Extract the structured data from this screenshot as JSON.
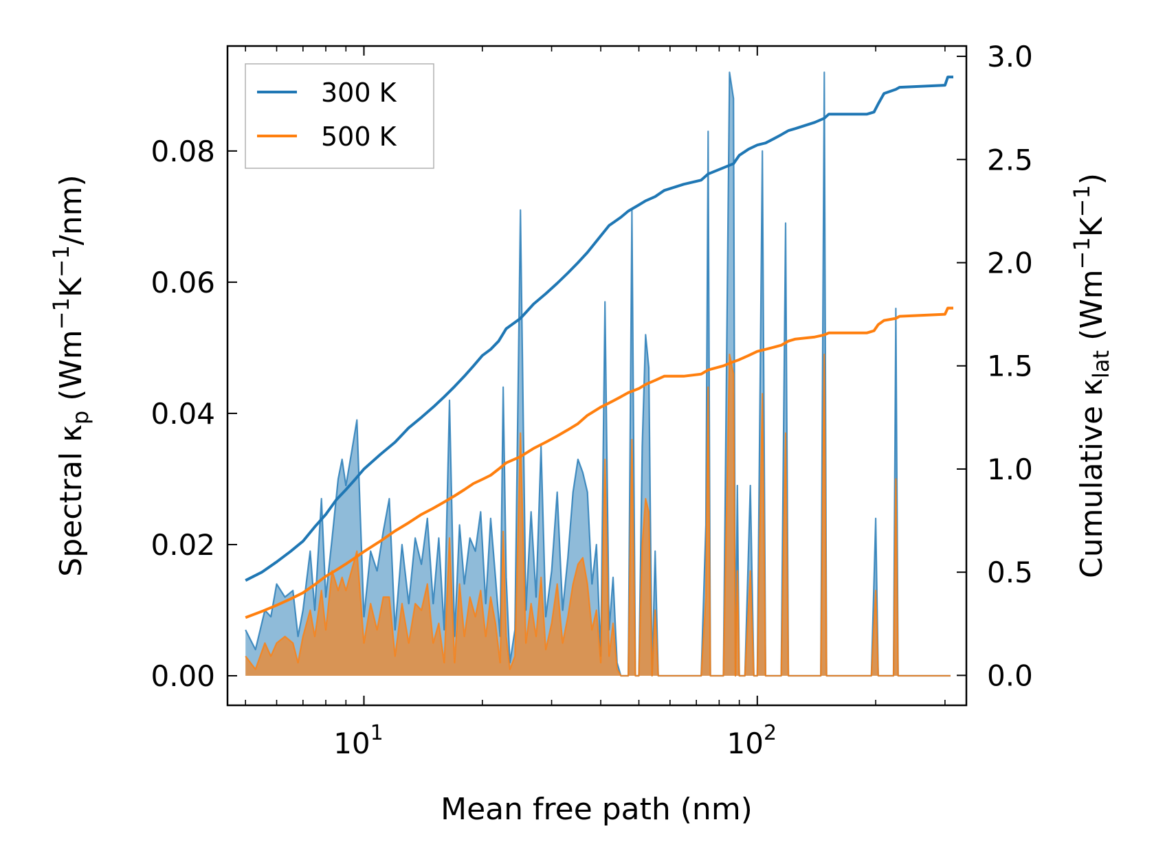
{
  "chart_data": {
    "type": "line",
    "xlabel": "Mean free path (nm)",
    "xscale": "log",
    "xlim": [
      4.5,
      340
    ],
    "xticks": [
      {
        "value": 10,
        "base": "10",
        "exp": "1"
      },
      {
        "value": 100,
        "base": "10",
        "exp": "2"
      }
    ],
    "left_axis": {
      "label_prefix": "Spectral κ",
      "label_sub": "p",
      "label_unit_prefix": "(Wm",
      "label_unit_exp1": "−1",
      "label_unit_mid": "K",
      "label_unit_exp2": "−1",
      "label_unit_suffix": "/nm)",
      "ylim": [
        -0.0045,
        0.096
      ],
      "ticks": [
        0.0,
        0.02,
        0.04,
        0.06,
        0.08
      ],
      "tick_labels": [
        "0.00",
        "0.02",
        "0.04",
        "0.06",
        "0.08"
      ]
    },
    "right_axis": {
      "label_prefix": "Cumulative κ",
      "label_sub": "lat",
      "label_unit_prefix": "(Wm",
      "label_unit_exp1": "−1",
      "label_unit_mid": "K",
      "label_unit_exp2": "−1",
      "label_unit_suffix": ")",
      "ylim": [
        -0.145,
        3.05
      ],
      "ticks": [
        0.0,
        0.5,
        1.0,
        1.5,
        2.0,
        2.5,
        3.0
      ],
      "tick_labels": [
        "0.0",
        "0.5",
        "1.0",
        "1.5",
        "2.0",
        "2.5",
        "3.0"
      ]
    },
    "legend": {
      "position": "top-left",
      "entries": [
        {
          "label": "300 K",
          "color": "#1f77b4"
        },
        {
          "label": "500 K",
          "color": "#ff7f0e"
        }
      ]
    },
    "spectral_series": [
      {
        "name": "300 K",
        "color": "#1f77b4",
        "fill_color": "#1f77b4",
        "x": [
          5.0,
          5.3,
          5.6,
          5.8,
          6.0,
          6.3,
          6.6,
          6.8,
          7.0,
          7.3,
          7.5,
          7.8,
          8.0,
          8.3,
          8.6,
          8.8,
          9.0,
          9.3,
          9.6,
          10.0,
          10.4,
          10.8,
          11.2,
          11.6,
          12.0,
          12.5,
          13.0,
          13.5,
          14.0,
          14.5,
          15.0,
          15.5,
          16.0,
          16.5,
          17.0,
          17.5,
          18.0,
          18.6,
          19.2,
          19.8,
          20.4,
          21.0,
          21.6,
          22.2,
          22.6,
          23.0,
          23.5,
          24.2,
          25.0,
          25.8,
          26.6,
          27.4,
          28.2,
          29.0,
          30.0,
          31.0,
          32.0,
          33.0,
          34.0,
          35.0,
          36.0,
          37.0,
          38.0,
          39.0,
          40.0,
          41.0,
          42.0,
          43.0,
          44.0,
          45.0,
          46.0,
          47.0,
          48.0,
          49.0,
          50.0,
          51.0,
          52.0,
          53.0,
          54.0,
          55.0,
          56.0,
          57.0,
          58.0,
          59.0,
          60.0,
          62.0,
          68.0,
          72.0,
          74.0,
          75.0,
          76.0,
          78.0,
          82.0,
          85.0,
          87.0,
          88.0,
          89.0,
          90.0,
          93.0,
          96.0,
          98.0,
          100.0,
          103.0,
          105.0,
          107.0,
          110.0,
          115.0,
          118.0,
          120.0,
          123.0,
          145.0,
          148.0,
          150.0,
          153.0,
          195.0,
          200.0,
          203.0,
          206.0,
          222.0,
          225.0,
          228.0,
          232.0,
          295.0,
          300.0,
          302.0,
          305.0,
          310.0
        ],
        "values": [
          0.007,
          0.004,
          0.01,
          0.009,
          0.014,
          0.012,
          0.013,
          0.006,
          0.01,
          0.019,
          0.01,
          0.027,
          0.012,
          0.021,
          0.03,
          0.033,
          0.029,
          0.034,
          0.039,
          0.009,
          0.019,
          0.016,
          0.022,
          0.027,
          0.007,
          0.02,
          0.011,
          0.021,
          0.017,
          0.024,
          0.011,
          0.021,
          0.007,
          0.042,
          0.006,
          0.023,
          0.014,
          0.021,
          0.019,
          0.025,
          0.011,
          0.024,
          0.015,
          0.006,
          0.044,
          0.015,
          0.002,
          0.007,
          0.071,
          0.01,
          0.025,
          0.012,
          0.035,
          0.009,
          0.016,
          0.028,
          0.01,
          0.018,
          0.028,
          0.033,
          0.031,
          0.028,
          0.014,
          0.02,
          0.003,
          0.057,
          0.007,
          0.015,
          0.002,
          0.0,
          0.0,
          0.0,
          0.071,
          0.0,
          0.0,
          0.035,
          0.052,
          0.047,
          0.0,
          0.019,
          0.0,
          0.0,
          0.0,
          0.0,
          0.0,
          0.0,
          0.0,
          0.0,
          0.023,
          0.083,
          0.0,
          0.0,
          0.0,
          0.092,
          0.088,
          0.0,
          0.029,
          0.0,
          0.0,
          0.029,
          0.0,
          0.0,
          0.08,
          0.0,
          0.0,
          0.0,
          0.0,
          0.069,
          0.0,
          0.0,
          0.0,
          0.092,
          0.0,
          0.0,
          0.0,
          0.024,
          0.0,
          0.0,
          0.0,
          0.056,
          0.0,
          0.0,
          0.0,
          0.0,
          0.0,
          0.0,
          0.0
        ]
      },
      {
        "name": "500 K",
        "color": "#ff7f0e",
        "fill_color": "#ff7f0e",
        "x": [
          5.0,
          5.3,
          5.6,
          5.8,
          6.0,
          6.3,
          6.6,
          6.8,
          7.0,
          7.3,
          7.5,
          7.8,
          8.0,
          8.3,
          8.6,
          8.8,
          9.0,
          9.3,
          9.6,
          10.0,
          10.4,
          10.8,
          11.2,
          11.6,
          12.0,
          12.5,
          13.0,
          13.5,
          14.0,
          14.5,
          15.0,
          15.5,
          16.0,
          16.5,
          17.0,
          17.5,
          18.0,
          18.6,
          19.2,
          19.8,
          20.4,
          21.0,
          21.6,
          22.2,
          22.6,
          23.0,
          23.5,
          24.2,
          25.0,
          25.8,
          26.6,
          27.4,
          28.2,
          29.0,
          30.0,
          31.0,
          32.0,
          33.0,
          34.0,
          35.0,
          36.0,
          37.0,
          38.0,
          39.0,
          40.0,
          41.0,
          42.0,
          43.0,
          44.0,
          45.0,
          46.0,
          47.0,
          48.0,
          49.0,
          50.0,
          51.0,
          52.0,
          53.0,
          54.0,
          55.0,
          56.0,
          57.0,
          58.0,
          59.0,
          60.0,
          62.0,
          68.0,
          72.0,
          74.0,
          75.0,
          76.0,
          78.0,
          82.0,
          85.0,
          87.0,
          88.0,
          89.0,
          90.0,
          93.0,
          96.0,
          98.0,
          100.0,
          103.0,
          105.0,
          107.0,
          110.0,
          115.0,
          118.0,
          120.0,
          123.0,
          145.0,
          148.0,
          150.0,
          153.0,
          195.0,
          200.0,
          203.0,
          206.0,
          222.0,
          225.0,
          228.0,
          232.0,
          295.0,
          300.0,
          302.0,
          305.0,
          310.0
        ],
        "values": [
          0.003,
          0.001,
          0.005,
          0.003,
          0.005,
          0.006,
          0.005,
          0.002,
          0.006,
          0.01,
          0.006,
          0.013,
          0.007,
          0.016,
          0.013,
          0.015,
          0.013,
          0.016,
          0.019,
          0.005,
          0.011,
          0.007,
          0.012,
          0.012,
          0.003,
          0.011,
          0.005,
          0.011,
          0.01,
          0.014,
          0.005,
          0.008,
          0.002,
          0.021,
          0.002,
          0.014,
          0.006,
          0.012,
          0.009,
          0.013,
          0.006,
          0.012,
          0.008,
          0.002,
          0.022,
          0.006,
          0.001,
          0.003,
          0.037,
          0.005,
          0.011,
          0.006,
          0.015,
          0.004,
          0.008,
          0.014,
          0.005,
          0.009,
          0.014,
          0.017,
          0.018,
          0.014,
          0.007,
          0.01,
          0.002,
          0.033,
          0.003,
          0.008,
          0.001,
          0.0,
          0.0,
          0.0,
          0.036,
          0.0,
          0.0,
          0.02,
          0.027,
          0.025,
          0.0,
          0.01,
          0.0,
          0.0,
          0.0,
          0.0,
          0.0,
          0.0,
          0.0,
          0.0,
          0.012,
          0.044,
          0.0,
          0.0,
          0.0,
          0.049,
          0.046,
          0.0,
          0.016,
          0.0,
          0.0,
          0.016,
          0.0,
          0.0,
          0.043,
          0.0,
          0.0,
          0.0,
          0.0,
          0.037,
          0.0,
          0.0,
          0.0,
          0.049,
          0.0,
          0.0,
          0.0,
          0.013,
          0.0,
          0.0,
          0.0,
          0.03,
          0.0,
          0.0,
          0.0,
          0.0,
          0.0,
          0.0,
          0.0
        ]
      }
    ],
    "cumulative_series": [
      {
        "name": "300 K",
        "color": "#1f77b4",
        "x": [
          5.0,
          5.5,
          6.0,
          6.5,
          7.0,
          7.5,
          8.0,
          8.5,
          9.0,
          9.5,
          10.0,
          11.0,
          12.0,
          13.0,
          14.0,
          15.0,
          16.0,
          17.0,
          18.0,
          19.0,
          20.0,
          21.0,
          22.0,
          23.0,
          25.0,
          27.0,
          29.0,
          31.0,
          33.0,
          35.0,
          37.0,
          40.0,
          42.0,
          45.0,
          47.0,
          50.0,
          52.0,
          55.0,
          58.0,
          65.0,
          72.0,
          75.0,
          82.0,
          87.0,
          90.0,
          95.0,
          100.0,
          105.0,
          110.0,
          115.0,
          120.0,
          125.0,
          140.0,
          148.0,
          152.0,
          190.0,
          198.0,
          203.0,
          210.0,
          225.0,
          230.0,
          300.0,
          305.0,
          315.0
        ],
        "values": [
          0.46,
          0.5,
          0.55,
          0.6,
          0.65,
          0.72,
          0.78,
          0.85,
          0.9,
          0.95,
          1.0,
          1.07,
          1.13,
          1.2,
          1.25,
          1.3,
          1.35,
          1.4,
          1.45,
          1.5,
          1.55,
          1.58,
          1.62,
          1.68,
          1.73,
          1.8,
          1.85,
          1.9,
          1.95,
          2.0,
          2.05,
          2.13,
          2.18,
          2.22,
          2.25,
          2.28,
          2.3,
          2.32,
          2.35,
          2.38,
          2.4,
          2.43,
          2.46,
          2.48,
          2.52,
          2.55,
          2.57,
          2.58,
          2.6,
          2.62,
          2.64,
          2.65,
          2.68,
          2.7,
          2.72,
          2.72,
          2.73,
          2.77,
          2.82,
          2.84,
          2.85,
          2.86,
          2.9,
          2.9
        ]
      },
      {
        "name": "500 K",
        "color": "#ff7f0e",
        "x": [
          5.0,
          5.5,
          6.0,
          6.5,
          7.0,
          7.5,
          8.0,
          8.5,
          9.0,
          9.5,
          10.0,
          11.0,
          12.0,
          13.0,
          14.0,
          15.0,
          16.0,
          17.0,
          18.0,
          19.0,
          20.0,
          21.0,
          22.0,
          23.0,
          25.0,
          27.0,
          29.0,
          31.0,
          33.0,
          35.0,
          37.0,
          40.0,
          42.0,
          45.0,
          47.0,
          50.0,
          52.0,
          55.0,
          58.0,
          65.0,
          72.0,
          75.0,
          82.0,
          87.0,
          90.0,
          95.0,
          100.0,
          105.0,
          110.0,
          115.0,
          120.0,
          125.0,
          140.0,
          148.0,
          152.0,
          190.0,
          198.0,
          203.0,
          210.0,
          225.0,
          230.0,
          300.0,
          305.0,
          315.0
        ],
        "values": [
          0.28,
          0.31,
          0.34,
          0.37,
          0.4,
          0.44,
          0.48,
          0.51,
          0.54,
          0.57,
          0.6,
          0.65,
          0.7,
          0.74,
          0.78,
          0.81,
          0.84,
          0.87,
          0.9,
          0.93,
          0.95,
          0.97,
          1.0,
          1.03,
          1.06,
          1.1,
          1.13,
          1.16,
          1.19,
          1.22,
          1.26,
          1.3,
          1.32,
          1.35,
          1.37,
          1.39,
          1.41,
          1.43,
          1.45,
          1.45,
          1.46,
          1.48,
          1.5,
          1.52,
          1.53,
          1.55,
          1.57,
          1.58,
          1.59,
          1.6,
          1.62,
          1.63,
          1.64,
          1.65,
          1.66,
          1.66,
          1.67,
          1.7,
          1.72,
          1.73,
          1.74,
          1.75,
          1.78,
          1.78
        ]
      }
    ]
  }
}
